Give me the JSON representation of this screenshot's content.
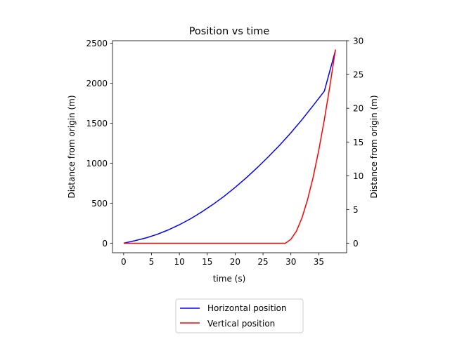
{
  "chart_data": {
    "type": "line",
    "title": "Position vs time",
    "xlabel": "time (s)",
    "ylabel_left": "Distance from origin (m)",
    "ylabel_right": "Distance from origin (m)",
    "xlim": [
      -2,
      40
    ],
    "ylim_left": [
      -120,
      2530
    ],
    "ylim_right": [
      -1.4,
      30
    ],
    "xticks": [
      0,
      5,
      10,
      15,
      20,
      25,
      30,
      35
    ],
    "yticks_left": [
      0,
      500,
      1000,
      1500,
      2000,
      2500
    ],
    "yticks_right": [
      0,
      5,
      10,
      15,
      20,
      25,
      30
    ],
    "grid": false,
    "legend_position": "below plot",
    "series": [
      {
        "name": "Horizontal position",
        "axis": "left",
        "color": "#0000ff",
        "x": [
          0,
          2,
          4,
          6,
          8,
          10,
          12,
          14,
          16,
          18,
          20,
          22,
          24,
          26,
          28,
          30,
          32,
          34,
          36,
          38
        ],
        "y": [
          0,
          30,
          65,
          110,
          165,
          230,
          305,
          390,
          483,
          585,
          697,
          817,
          945,
          1082,
          1226,
          1380,
          1545,
          1720,
          1900,
          2410
        ]
      },
      {
        "name": "Vertical position",
        "axis": "right",
        "color": "#ff0000",
        "x": [
          0,
          5,
          10,
          15,
          20,
          25,
          29,
          30,
          31,
          32,
          33,
          34,
          35,
          36,
          37,
          38
        ],
        "y": [
          0,
          0,
          0,
          0,
          0,
          0,
          0,
          0.6,
          1.8,
          3.8,
          6.5,
          9.8,
          13.8,
          18.3,
          23.3,
          28.7
        ]
      }
    ]
  }
}
